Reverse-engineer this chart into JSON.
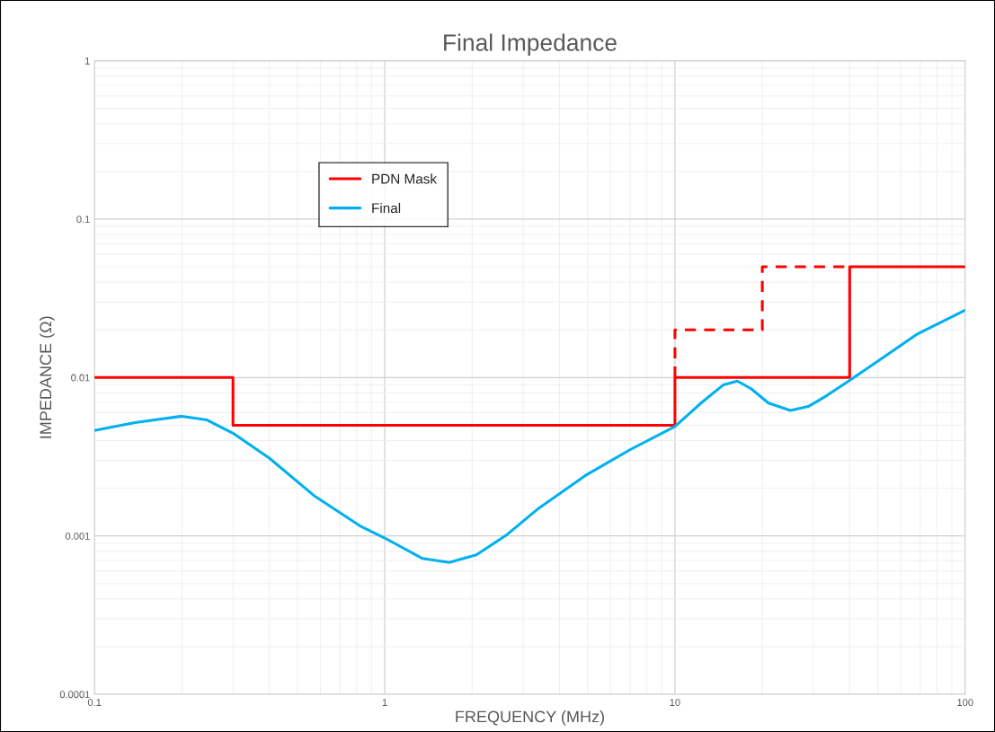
{
  "chart_data": {
    "type": "line",
    "title": "Final Impedance",
    "xlabel": "FREQUENCY (MHz)",
    "ylabel": "IMPEDANCE (Ω)",
    "log": "xy",
    "xlim": [
      0.1,
      100
    ],
    "ylim": [
      0.0001,
      1
    ],
    "xticks": [
      0.1,
      1,
      10,
      100
    ],
    "yticks": [
      0.0001,
      0.001,
      0.01,
      0.1,
      1
    ],
    "grid": true,
    "legend": "top left",
    "series": [
      {
        "name": "PDN Mask",
        "type": "step",
        "color": "#ff0000",
        "line_style": "solid",
        "x": [
          0.1,
          0.3,
          10,
          40,
          100
        ],
        "values": [
          0.01,
          0.005,
          0.01,
          0.05,
          0.05
        ]
      },
      {
        "type": "step",
        "color": "#ff0000",
        "line_style": "dashed",
        "x": [
          10,
          10,
          20,
          40
        ],
        "values": [
          0.01,
          0.02,
          0.05,
          0.05
        ]
      },
      {
        "name": "Final",
        "color": "#00b0f0",
        "line_style": "solid",
        "x": [
          0.1,
          0.138,
          0.2,
          0.244,
          0.3,
          0.4,
          0.57,
          0.82,
          1.0,
          1.35,
          1.67,
          2.07,
          2.64,
          3.4,
          4.9,
          7.0,
          10,
          12.3,
          14.7,
          16.4,
          18.3,
          21,
          25,
          29,
          33.4,
          40,
          51,
          68,
          100
        ],
        "values": [
          0.00463,
          0.0052,
          0.0057,
          0.0054,
          0.00445,
          0.0031,
          0.0018,
          0.00116,
          0.00097,
          0.00072,
          0.00068,
          0.00076,
          0.00102,
          0.0015,
          0.0024,
          0.0035,
          0.0049,
          0.0069,
          0.009,
          0.0095,
          0.0085,
          0.0069,
          0.0062,
          0.0066,
          0.0077,
          0.0096,
          0.013,
          0.0187,
          0.0266
        ]
      }
    ]
  }
}
